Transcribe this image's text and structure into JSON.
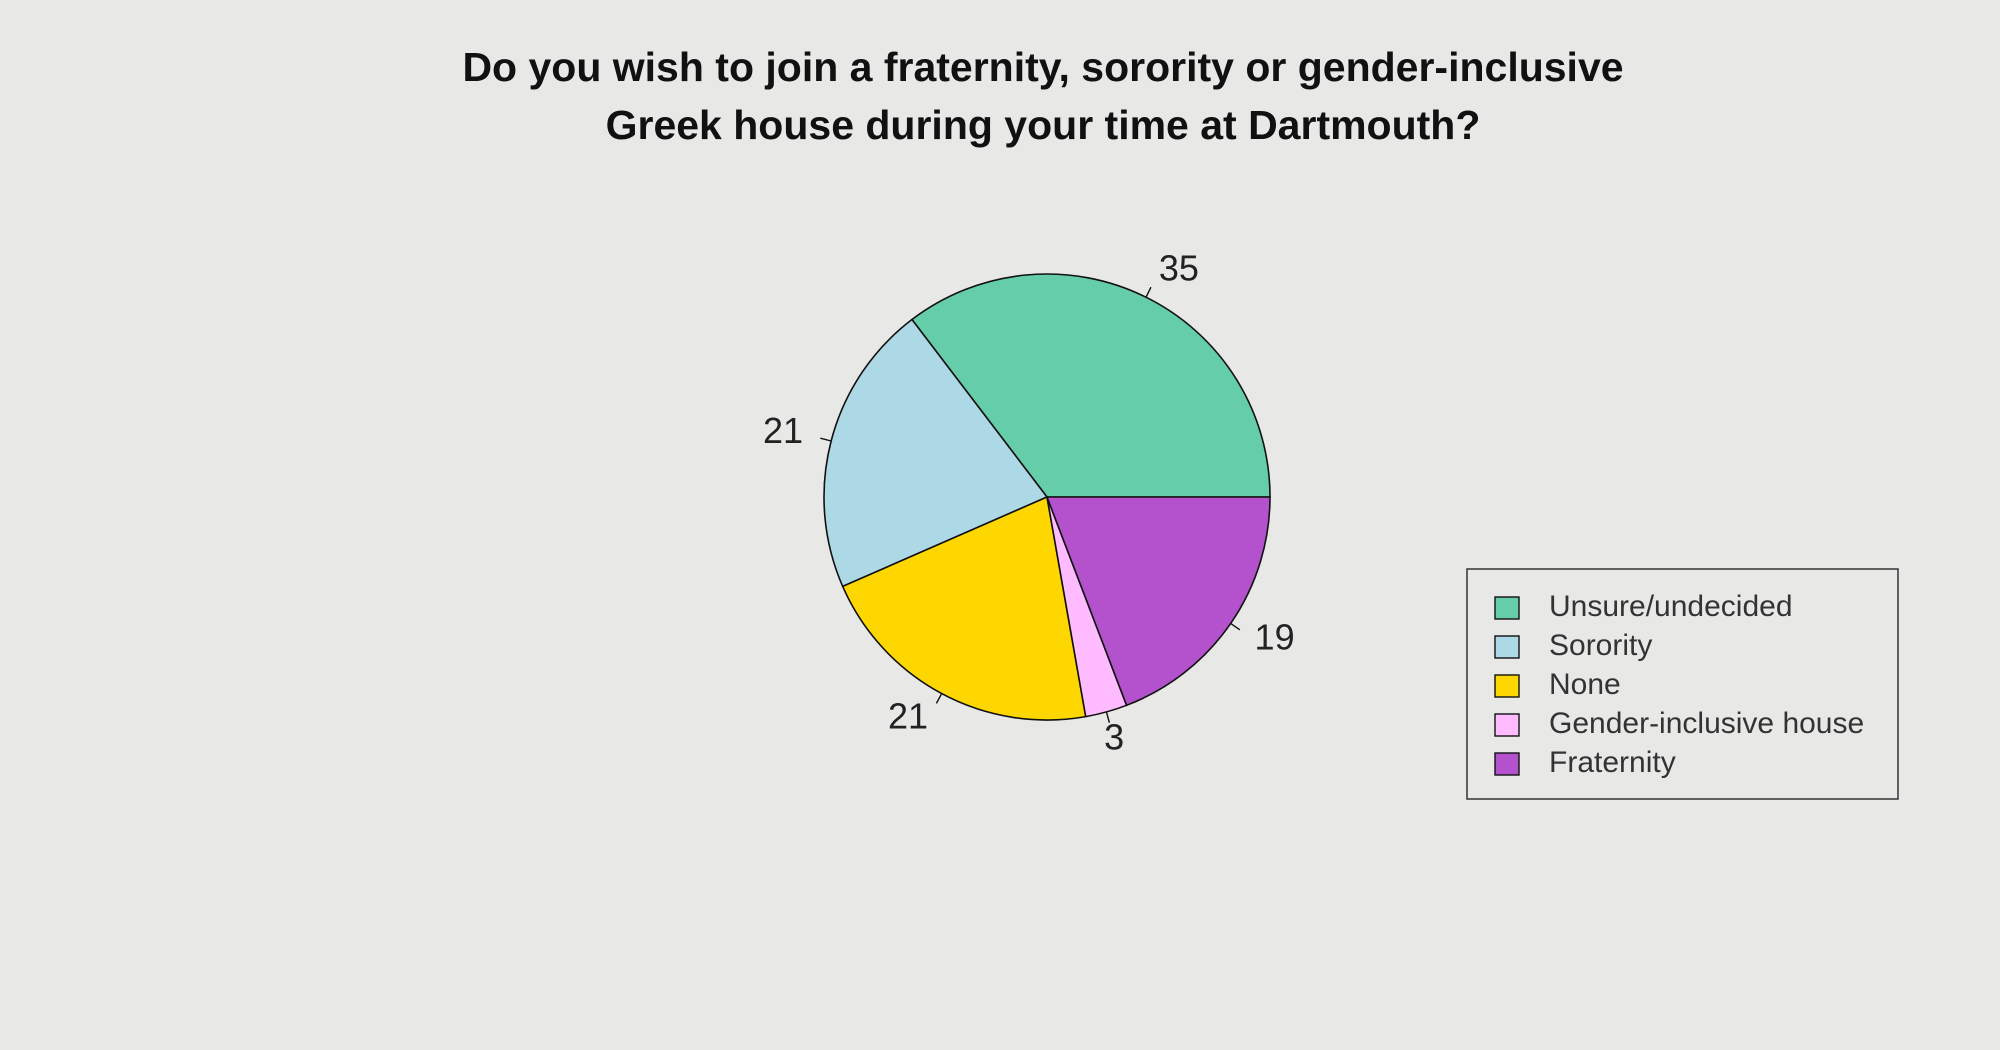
{
  "chart_data": {
    "type": "pie",
    "title": [
      "Do you wish to join a fraternity, sorority or gender-inclusive",
      "Greek house during your time at Dartmouth?"
    ],
    "categories": [
      "Unsure/undecided",
      "Sorority",
      "None",
      "Gender-inclusive house",
      "Fraternity"
    ],
    "values": [
      35,
      21,
      21,
      3,
      19
    ],
    "colors": [
      "#66cdaa",
      "#add8e6",
      "#ffd700",
      "#ffbbff",
      "#b452cd"
    ],
    "legend": "right"
  }
}
